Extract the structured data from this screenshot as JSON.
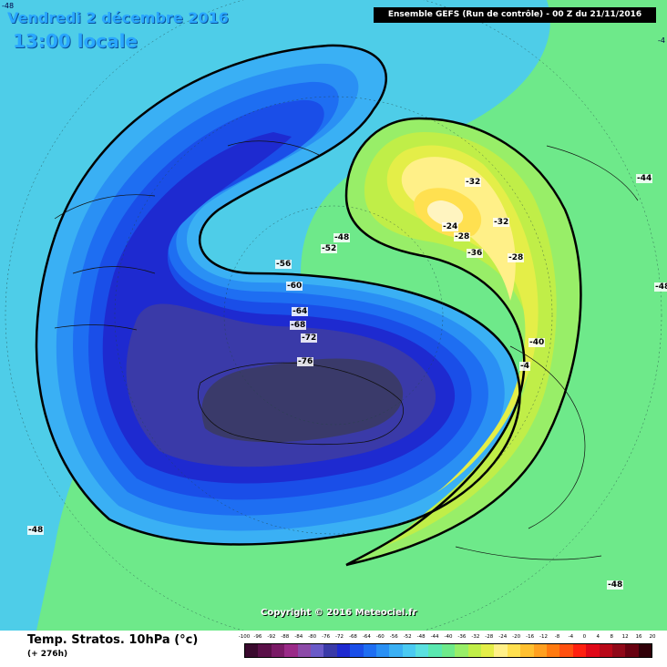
{
  "header": {
    "date": "Vendredi 2 décembre 2016",
    "time": "13:00 locale",
    "run": "Ensemble GEFS  (Run de contrôle)  -  00 Z du 21/11/2016"
  },
  "copyright": "Copyright © 2016 Meteociel.fr",
  "edge_labels": {
    "top_left": "-48",
    "top_right": "-4"
  },
  "isotherm_labels": [
    {
      "text": "-76"
    },
    {
      "text": "-72"
    },
    {
      "text": "-68"
    },
    {
      "text": "-64"
    },
    {
      "text": "-60"
    },
    {
      "text": "-56"
    },
    {
      "text": "-52"
    },
    {
      "text": "-48"
    },
    {
      "text": "-40"
    },
    {
      "text": "-36"
    },
    {
      "text": "-32"
    },
    {
      "text": "-32"
    },
    {
      "text": "-28"
    },
    {
      "text": "-28"
    },
    {
      "text": "-24"
    },
    {
      "text": "-4"
    },
    {
      "text": "-44"
    },
    {
      "text": "-48"
    },
    {
      "text": "-48"
    },
    {
      "text": "-48"
    }
  ],
  "footer": {
    "title": "Temp. Stratos. 10hPa (°c)",
    "subtitle": "(+ 276h)"
  },
  "legend": {
    "scale_labels": [
      "-100",
      "-96",
      "-92",
      "-88",
      "-84",
      "-80",
      "-76",
      "-72",
      "-68",
      "-64",
      "-60",
      "-56",
      "-52",
      "-48",
      "-44",
      "-40",
      "-36",
      "-32",
      "-28",
      "-24",
      "-20",
      "-16",
      "-12",
      "-8",
      "-4",
      "0",
      "4",
      "8",
      "12",
      "16",
      "20"
    ],
    "colors": [
      "#3a0a2e",
      "#5a1048",
      "#7a1a66",
      "#9a2a88",
      "#8c4aa8",
      "#6a5ac8",
      "#3a3aa8",
      "#1e2ad0",
      "#1a4ee8",
      "#1e6ef2",
      "#2a90f4",
      "#3ab0f4",
      "#4acaf2",
      "#5ae0e0",
      "#5ae8b0",
      "#6eea8a",
      "#98ee68",
      "#c0ee48",
      "#e4ee48",
      "#fff088",
      "#ffe050",
      "#ffc030",
      "#ffa020",
      "#ff7a10",
      "#ff5010",
      "#ff2010",
      "#e00818",
      "#b80818",
      "#900818",
      "#680010",
      "#300008"
    ]
  }
}
